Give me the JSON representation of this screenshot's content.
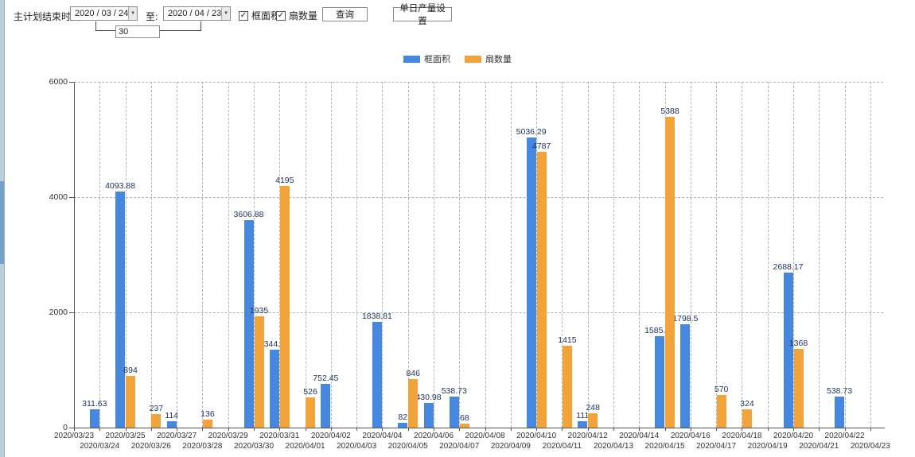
{
  "toolbar": {
    "plan_end_label": "主计划结束时间:",
    "date_from": "2020 / 03 / 24",
    "to_label": "至:",
    "date_to": "2020 / 04 / 23",
    "interval_days": "30",
    "frame_area_label": "框面积",
    "sash_count_label": "扇数量",
    "frame_area_checked": true,
    "sash_count_checked": true,
    "query_label": "查询",
    "daily_output_label": "单日产量设置"
  },
  "icons": {
    "check": "✓",
    "dropdown_arrow": "▼"
  },
  "legend": [
    {
      "label": "框面积",
      "color": "#4687e0"
    },
    {
      "label": "扇数量",
      "color": "#f2a33a"
    }
  ],
  "chart_data": {
    "type": "bar",
    "title": "",
    "xlabel": "",
    "ylabel": "",
    "ylim": [
      0,
      6000
    ],
    "yticks": [
      0,
      2000,
      4000,
      6000
    ],
    "grid": true,
    "legend_position": "top",
    "categories": [
      "2020/03/23",
      "2020/03/24",
      "2020/03/25",
      "2020/03/26",
      "2020/03/27",
      "2020/03/28",
      "2020/03/29",
      "2020/03/30",
      "2020/03/31",
      "2020/04/01",
      "2020/04/02",
      "2020/04/03",
      "2020/04/04",
      "2020/04/05",
      "2020/04/06",
      "2020/04/07",
      "2020/04/08",
      "2020/04/09",
      "2020/04/10",
      "2020/04/11",
      "2020/04/12",
      "2020/04/13",
      "2020/04/14",
      "2020/04/15",
      "2020/04/16",
      "2020/04/17",
      "2020/04/18",
      "2020/04/19",
      "2020/04/20",
      "2020/04/21",
      "2020/04/22",
      "2020/04/23"
    ],
    "series": [
      {
        "name": "框面积",
        "color": "#4687e0",
        "values": [
          null,
          311.63,
          4093.88,
          null,
          114,
          null,
          null,
          3606.88,
          1344.95,
          null,
          752.45,
          null,
          1838.81,
          82,
          430.98,
          538.73,
          null,
          null,
          5036.29,
          null,
          111,
          null,
          null,
          1585.96,
          1798.5,
          null,
          null,
          null,
          2688.17,
          null,
          538.73,
          null
        ]
      },
      {
        "name": "扇数量",
        "color": "#f2a33a",
        "values": [
          null,
          null,
          894,
          237,
          null,
          136,
          null,
          1935,
          4195,
          526,
          null,
          null,
          null,
          846,
          null,
          68,
          null,
          null,
          4787,
          1415,
          248,
          null,
          null,
          5388,
          null,
          570,
          324,
          null,
          1368,
          null,
          null,
          null
        ]
      }
    ]
  }
}
